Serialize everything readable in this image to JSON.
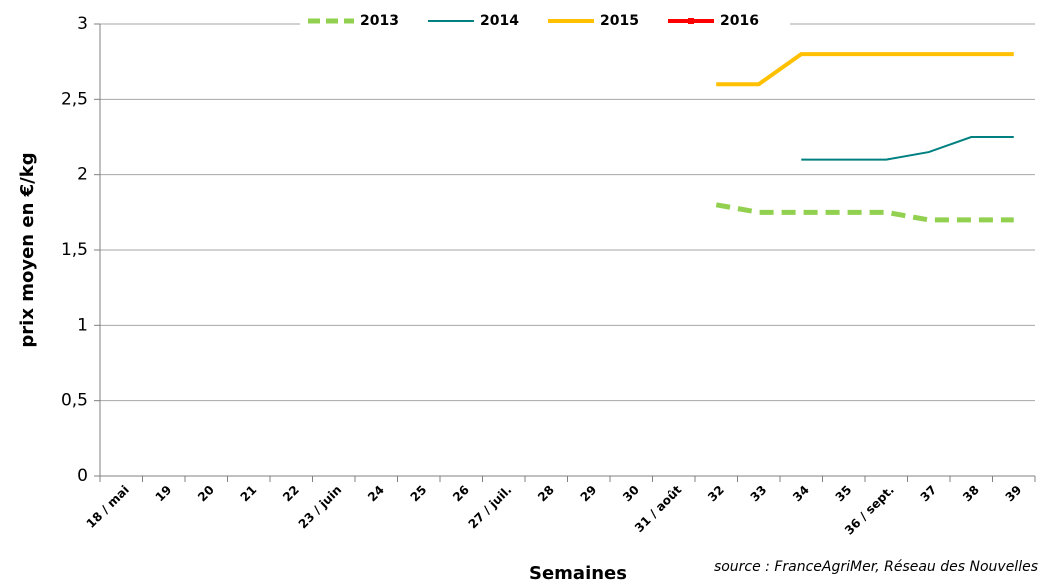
{
  "chart_data": {
    "type": "line",
    "y_label": "prix moyen en €/kg",
    "x_label": "Semaines",
    "source": "source : FranceAgriMer, Réseau des Nouvelles",
    "categories": [
      "18 / mai",
      "19",
      "20",
      "21",
      "22",
      "23 / juin",
      "24",
      "25",
      "26",
      "27 / juil.",
      "28",
      "29",
      "30",
      "31 / août",
      "32",
      "33",
      "34",
      "35",
      "36 / sept.",
      "37",
      "38",
      "39"
    ],
    "series": [
      {
        "name": "2013",
        "color": "#92d050",
        "width": 5,
        "dash": true,
        "values": [
          null,
          null,
          null,
          null,
          null,
          null,
          null,
          null,
          null,
          null,
          null,
          null,
          null,
          null,
          1.8,
          1.75,
          1.75,
          1.75,
          1.75,
          1.7,
          1.7,
          1.7
        ]
      },
      {
        "name": "2014",
        "color": "#008080",
        "width": 2,
        "values": [
          null,
          null,
          null,
          null,
          null,
          null,
          null,
          null,
          null,
          null,
          null,
          null,
          null,
          null,
          null,
          null,
          2.1,
          2.1,
          2.1,
          2.15,
          2.25,
          2.25
        ]
      },
      {
        "name": "2015",
        "color": "#ffc000",
        "width": 4,
        "values": [
          null,
          null,
          null,
          null,
          null,
          null,
          null,
          null,
          null,
          null,
          null,
          null,
          null,
          null,
          2.6,
          2.6,
          2.8,
          2.8,
          2.8,
          2.8,
          2.8,
          2.8
        ]
      },
      {
        "name": "2016",
        "color": "#ff0000",
        "width": 4,
        "marker": "square",
        "values": [
          null,
          null,
          null,
          null,
          null,
          null,
          null,
          null,
          null,
          null,
          null,
          null,
          null,
          null,
          null,
          null,
          null,
          null,
          null,
          null,
          null,
          null
        ]
      }
    ],
    "ylim": [
      0,
      3
    ],
    "yticks": [
      0,
      {
        "value": 0.5,
        "label": "0,5"
      },
      1,
      {
        "value": 1.5,
        "label": "1,5"
      },
      2,
      {
        "value": 2.5,
        "label": "2,5"
      },
      3
    ],
    "grid": true,
    "legend": "top"
  }
}
